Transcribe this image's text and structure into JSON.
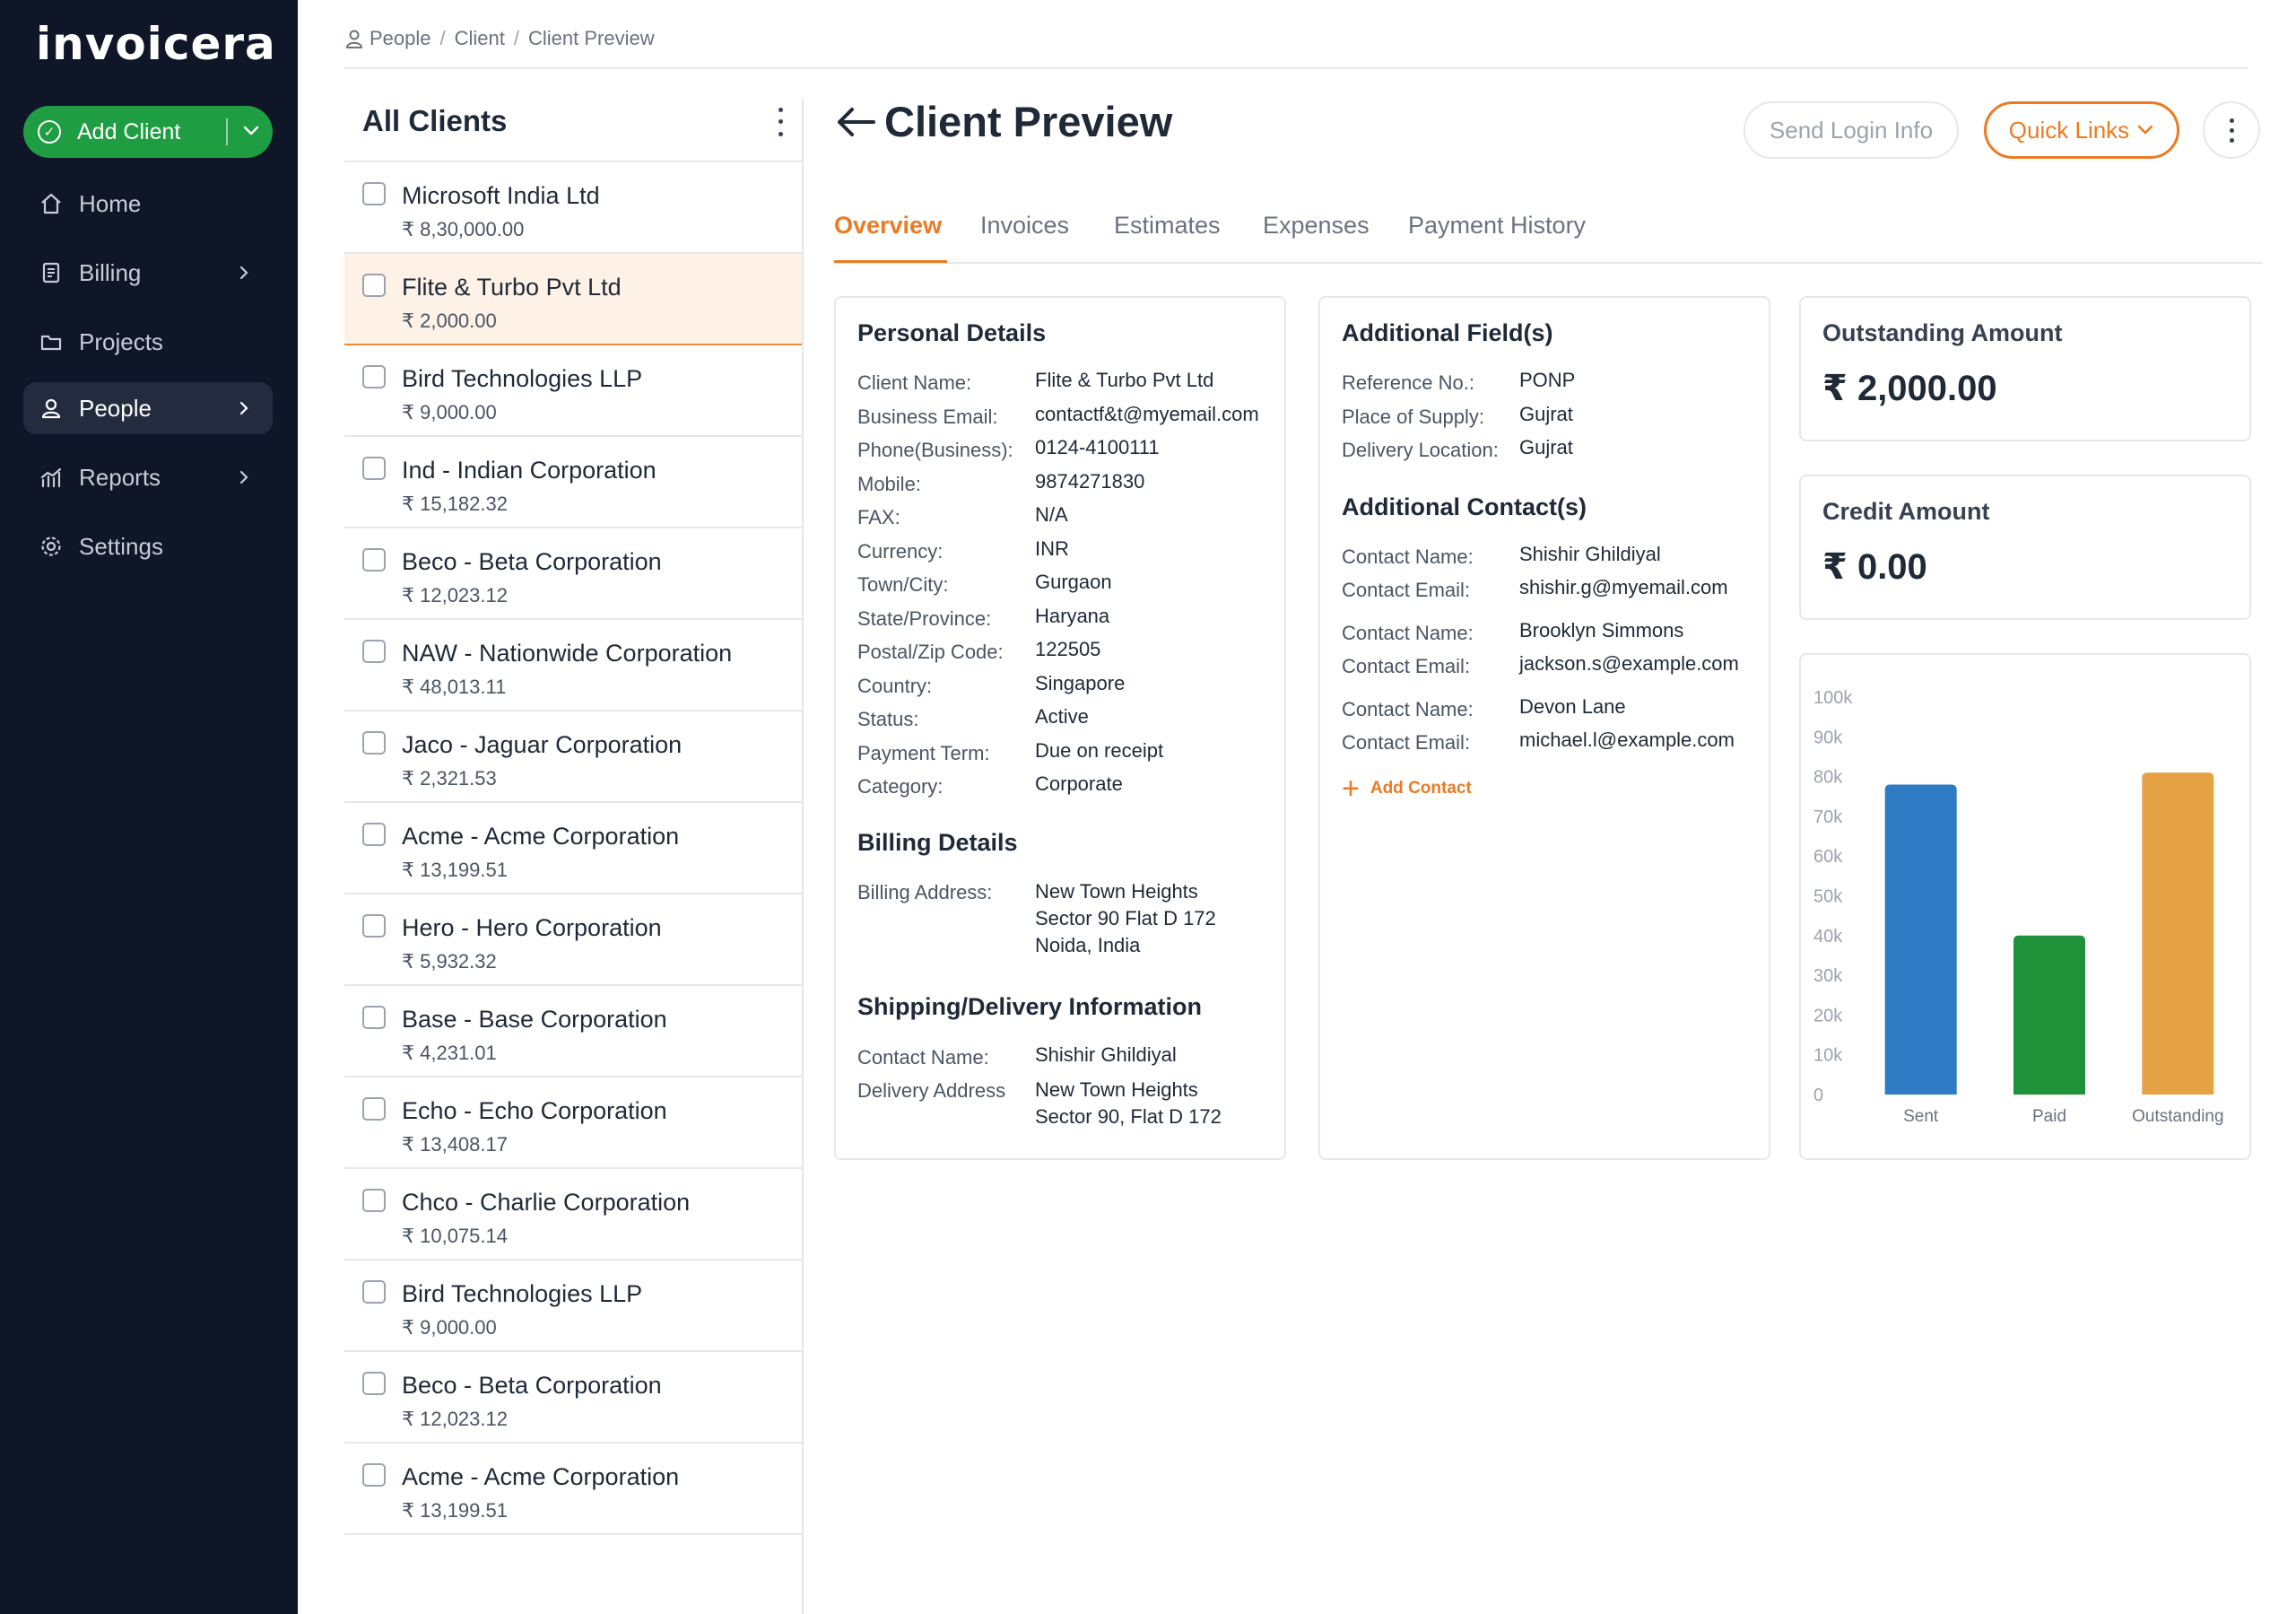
{
  "app": {
    "logo": "invoicera"
  },
  "sidebar": {
    "add_client_label": "Add Client",
    "items": [
      {
        "label": "Home",
        "icon": "home-icon",
        "active": false,
        "has_arrow": false
      },
      {
        "label": "Billing",
        "icon": "billing-icon",
        "active": false,
        "has_arrow": true
      },
      {
        "label": "Projects",
        "icon": "folder-icon",
        "active": false,
        "has_arrow": false
      },
      {
        "label": "People",
        "icon": "user-icon",
        "active": true,
        "has_arrow": true
      },
      {
        "label": "Reports",
        "icon": "reports-icon",
        "active": false,
        "has_arrow": true
      },
      {
        "label": "Settings",
        "icon": "gear-icon",
        "active": false,
        "has_arrow": false
      }
    ]
  },
  "breadcrumb": {
    "items": [
      "People",
      "Client",
      "Client Preview"
    ],
    "separator": "/"
  },
  "client_list": {
    "title": "All Clients",
    "clients": [
      {
        "name": "Microsoft India Ltd",
        "amount": "₹ 8,30,000.00",
        "selected": false
      },
      {
        "name": "Flite & Turbo Pvt  Ltd",
        "amount": "₹ 2,000.00",
        "selected": true
      },
      {
        "name": "Bird Technologies LLP",
        "amount": "₹ 9,000.00",
        "selected": false
      },
      {
        "name": "Ind - Indian Corporation",
        "amount": "₹ 15,182.32",
        "selected": false
      },
      {
        "name": "Beco - Beta Corporation",
        "amount": "₹ 12,023.12",
        "selected": false
      },
      {
        "name": "NAW - Nationwide Corporation",
        "amount": "₹ 48,013.11",
        "selected": false
      },
      {
        "name": "Jaco - Jaguar Corporation",
        "amount": "₹ 2,321.53",
        "selected": false
      },
      {
        "name": "Acme - Acme Corporation",
        "amount": "₹ 13,199.51",
        "selected": false
      },
      {
        "name": "Hero - Hero Corporation",
        "amount": "₹ 5,932.32",
        "selected": false
      },
      {
        "name": "Base - Base Corporation",
        "amount": "₹ 4,231.01",
        "selected": false
      },
      {
        "name": "Echo - Echo Corporation",
        "amount": "₹ 13,408.17",
        "selected": false
      },
      {
        "name": "Chco - Charlie Corporation",
        "amount": "₹ 10,075.14",
        "selected": false
      },
      {
        "name": "Bird Technologies LLP",
        "amount": "₹ 9,000.00",
        "selected": false
      },
      {
        "name": "Beco - Beta Corporation",
        "amount": "₹ 12,023.12",
        "selected": false
      },
      {
        "name": "Acme - Acme Corporation",
        "amount": "₹ 13,199.51",
        "selected": false
      }
    ]
  },
  "preview": {
    "title": "Client Preview",
    "send_login_label": "Send Login Info",
    "quick_links_label": "Quick Links",
    "tabs": [
      "Overview",
      "Invoices",
      "Estimates",
      "Expenses",
      "Payment History"
    ],
    "active_tab": "Overview",
    "personal": {
      "heading": "Personal Details",
      "rows": [
        {
          "label": "Client Name:",
          "value": "Flite & Turbo Pvt  Ltd"
        },
        {
          "label": "Business Email:",
          "value": "contactf&t@myemail.com"
        },
        {
          "label": "Phone(Business):",
          "value": "0124-4100111"
        },
        {
          "label": "Mobile:",
          "value": "9874271830"
        },
        {
          "label": "FAX:",
          "value": "N/A"
        },
        {
          "label": "Currency:",
          "value": "INR"
        },
        {
          "label": "Town/City:",
          "value": "Gurgaon"
        },
        {
          "label": "State/Province:",
          "value": "Haryana"
        },
        {
          "label": "Postal/Zip Code:",
          "value": "122505"
        },
        {
          "label": "Country:",
          "value": "Singapore"
        },
        {
          "label": "Status:",
          "value": "Active"
        },
        {
          "label": "Payment Term:",
          "value": "Due on receipt"
        },
        {
          "label": "Category:",
          "value": "Corporate"
        }
      ]
    },
    "billing": {
      "heading": "Billing Details",
      "address_label": "Billing Address:",
      "address_lines": [
        "New Town Heights",
        "Sector 90 Flat D 172",
        "Noida, India"
      ]
    },
    "shipping": {
      "heading": "Shipping/Delivery Information",
      "contact_label": "Contact Name:",
      "contact_value": "Shishir Ghildiyal",
      "address_label": "Delivery Address",
      "address_lines": [
        "New Town Heights",
        "Sector 90, Flat D 172"
      ]
    },
    "additional_fields": {
      "heading": "Additional Field(s)",
      "rows": [
        {
          "label": "Reference No.:",
          "value": "PONP"
        },
        {
          "label": "Place of Supply:",
          "value": "Gujrat"
        },
        {
          "label": "Delivery Location:",
          "value": "Gujrat"
        }
      ]
    },
    "additional_contacts": {
      "heading": "Additional Contact(s)",
      "name_label": "Contact Name:",
      "email_label": "Contact Email:",
      "contacts": [
        {
          "name": "Shishir Ghildiyal",
          "email": "shishir.g@myemail.com"
        },
        {
          "name": "Brooklyn Simmons",
          "email": "jackson.s@example.com"
        },
        {
          "name": "Devon Lane",
          "email": "michael.l@example.com"
        }
      ],
      "add_label": "Add Contact"
    },
    "outstanding": {
      "label": "Outstanding Amount",
      "value": "₹ 2,000.00"
    },
    "credit": {
      "label": "Credit Amount",
      "value": "₹ 0.00"
    }
  },
  "colors": {
    "sidebar_bg": "#0f1628",
    "add_client_green": "#1f9d43",
    "accent_orange": "#ea7b24",
    "selected_row_bg": "#fef1e6"
  },
  "chart_data": {
    "type": "bar",
    "categories": [
      "Sent",
      "Paid",
      "Outstanding"
    ],
    "values": [
      78000,
      40000,
      81000
    ],
    "colors": [
      "#2f7bc4",
      "#1f9139",
      "#e4a244"
    ],
    "y_ticks": [
      "0",
      "10k",
      "20k",
      "30k",
      "40k",
      "50k",
      "60k",
      "70k",
      "80k",
      "90k",
      "100k"
    ],
    "ylim": [
      0,
      100000
    ],
    "grid": false,
    "legend": "none"
  }
}
